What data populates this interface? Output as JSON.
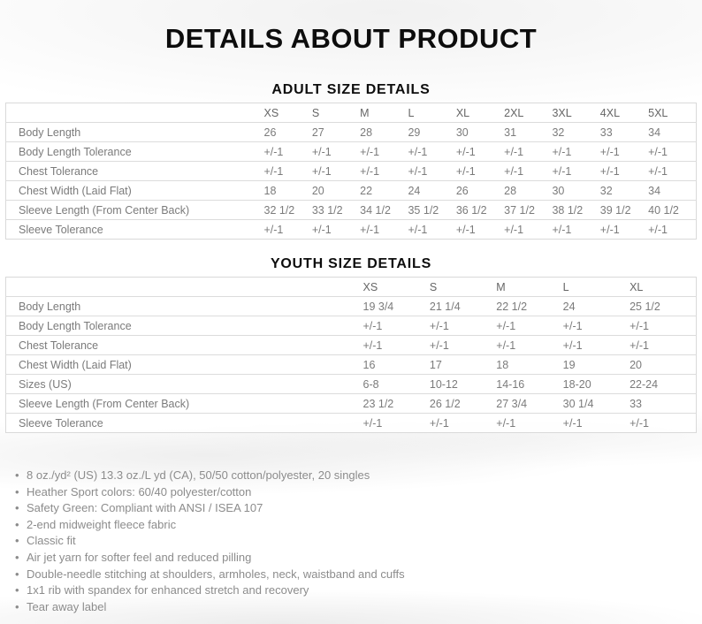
{
  "page": {
    "title": "DETAILS ABOUT PRODUCT"
  },
  "adult_table": {
    "title": "ADULT SIZE DETAILS",
    "columns": [
      "XS",
      "S",
      "M",
      "L",
      "XL",
      "2XL",
      "3XL",
      "4XL",
      "5XL"
    ],
    "rows": [
      {
        "label": "Body Length",
        "values": [
          "26",
          "27",
          "28",
          "29",
          "30",
          "31",
          "32",
          "33",
          "34"
        ]
      },
      {
        "label": "Body Length Tolerance",
        "values": [
          "+/-1",
          "+/-1",
          "+/-1",
          "+/-1",
          "+/-1",
          "+/-1",
          "+/-1",
          "+/-1",
          "+/-1"
        ]
      },
      {
        "label": "Chest Tolerance",
        "values": [
          "+/-1",
          "+/-1",
          "+/-1",
          "+/-1",
          "+/-1",
          "+/-1",
          "+/-1",
          "+/-1",
          "+/-1"
        ]
      },
      {
        "label": "Chest Width (Laid Flat)",
        "values": [
          "18",
          "20",
          "22",
          "24",
          "26",
          "28",
          "30",
          "32",
          "34"
        ]
      },
      {
        "label": "Sleeve Length (From Center Back)",
        "values": [
          "32 1/2",
          "33 1/2",
          "34 1/2",
          "35 1/2",
          "36 1/2",
          "37 1/2",
          "38 1/2",
          "39 1/2",
          "40 1/2"
        ]
      },
      {
        "label": "Sleeve Tolerance",
        "values": [
          "+/-1",
          "+/-1",
          "+/-1",
          "+/-1",
          "+/-1",
          "+/-1",
          "+/-1",
          "+/-1",
          "+/-1"
        ]
      }
    ]
  },
  "youth_table": {
    "title": "YOUTH SIZE DETAILS",
    "columns": [
      "XS",
      "S",
      "M",
      "L",
      "XL"
    ],
    "rows": [
      {
        "label": "Body Length",
        "values": [
          "19 3/4",
          "21 1/4",
          "22 1/2",
          "24",
          "25 1/2"
        ]
      },
      {
        "label": "Body Length Tolerance",
        "values": [
          "+/-1",
          "+/-1",
          "+/-1",
          "+/-1",
          "+/-1"
        ]
      },
      {
        "label": "Chest Tolerance",
        "values": [
          "+/-1",
          "+/-1",
          "+/-1",
          "+/-1",
          "+/-1"
        ]
      },
      {
        "label": "Chest Width (Laid Flat)",
        "values": [
          "16",
          "17",
          "18",
          "19",
          "20"
        ]
      },
      {
        "label": "Sizes (US)",
        "values": [
          "6-8",
          "10-12",
          "14-16",
          "18-20",
          "22-24"
        ]
      },
      {
        "label": "Sleeve Length (From Center Back)",
        "values": [
          "23 1/2",
          "26 1/2",
          "27 3/4",
          "30 1/4",
          "33"
        ]
      },
      {
        "label": "Sleeve Tolerance",
        "values": [
          "+/-1",
          "+/-1",
          "+/-1",
          "+/-1",
          "+/-1"
        ]
      }
    ]
  },
  "features": {
    "items": [
      "8 oz./yd² (US) 13.3 oz./L yd (CA), 50/50 cotton/polyester, 20 singles",
      "Heather Sport colors: 60/40 polyester/cotton",
      "Safety Green: Compliant with ANSI / ISEA 107",
      "2-end midweight fleece fabric",
      "Classic fit",
      "Air jet yarn for softer feel and reduced pilling",
      "Double-needle stitching at shoulders, armholes, neck, waistband and cuffs",
      "1x1 rib with spandex for enhanced stretch and recovery",
      "Tear away label"
    ]
  },
  "colors": {
    "title_text": "#0d0d0d",
    "table_text": "#7b7b7b",
    "table_border": "#d9d9d9",
    "row_separator": "#dcdcdc",
    "bullet_text": "#8c8c8c",
    "background": "#ffffff"
  }
}
